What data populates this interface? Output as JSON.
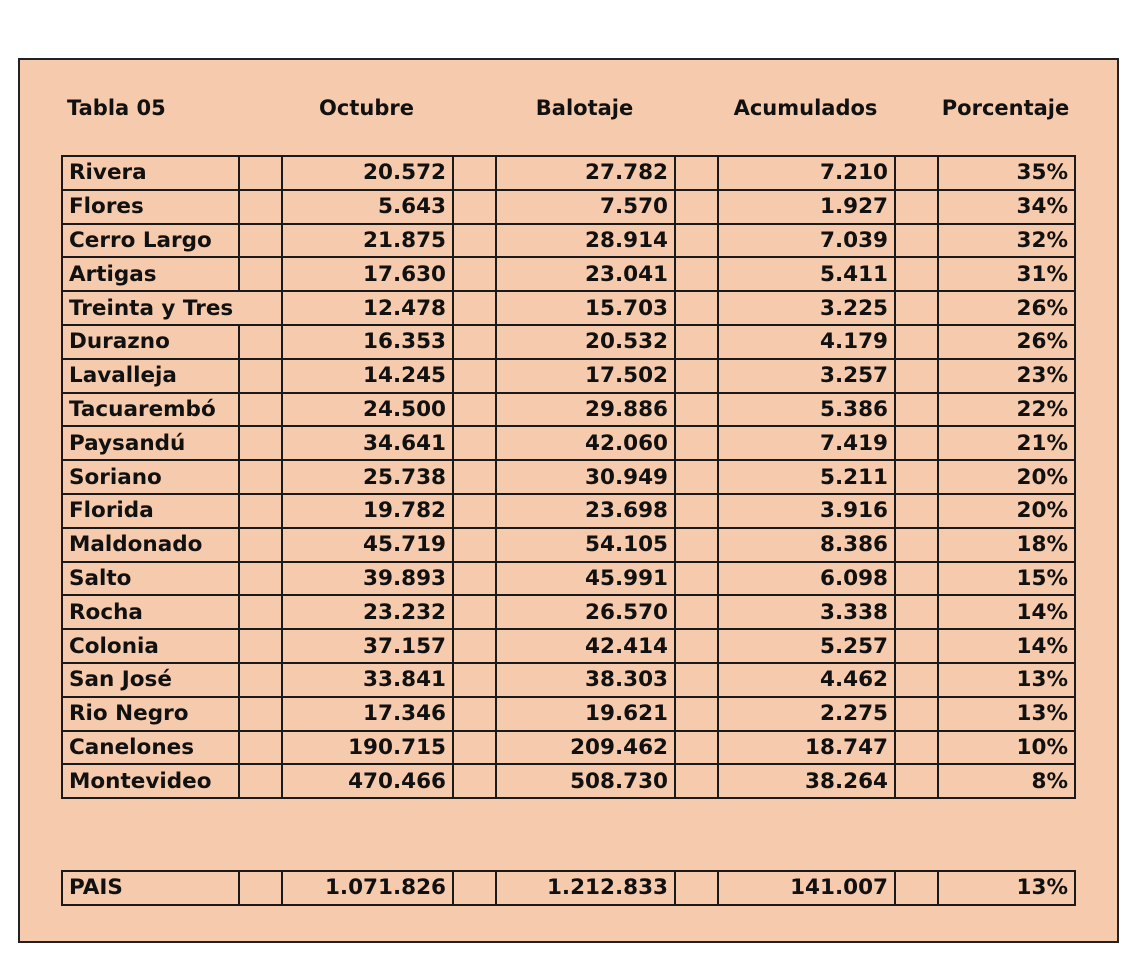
{
  "header": {
    "title": "Tabla 05",
    "columns": [
      "Octubre",
      "Balotaje",
      "Acumulados",
      "Porcentaje"
    ]
  },
  "rows": [
    {
      "name": "Rivera",
      "octubre": "20.572",
      "balotaje": "27.782",
      "acumulados": "7.210",
      "porcentaje": "35%"
    },
    {
      "name": "Flores",
      "octubre": "5.643",
      "balotaje": "7.570",
      "acumulados": "1.927",
      "porcentaje": "34%"
    },
    {
      "name": "Cerro Largo",
      "octubre": "21.875",
      "balotaje": "28.914",
      "acumulados": "7.039",
      "porcentaje": "32%"
    },
    {
      "name": "Artigas",
      "octubre": "17.630",
      "balotaje": "23.041",
      "acumulados": "5.411",
      "porcentaje": "31%"
    },
    {
      "name": "Treinta y Tres",
      "octubre": "12.478",
      "balotaje": "15.703",
      "acumulados": "3.225",
      "porcentaje": "26%",
      "span": true
    },
    {
      "name": "Durazno",
      "octubre": "16.353",
      "balotaje": "20.532",
      "acumulados": "4.179",
      "porcentaje": "26%"
    },
    {
      "name": "Lavalleja",
      "octubre": "14.245",
      "balotaje": "17.502",
      "acumulados": "3.257",
      "porcentaje": "23%"
    },
    {
      "name": "Tacuarembó",
      "octubre": "24.500",
      "balotaje": "29.886",
      "acumulados": "5.386",
      "porcentaje": "22%"
    },
    {
      "name": "Paysandú",
      "octubre": "34.641",
      "balotaje": "42.060",
      "acumulados": "7.419",
      "porcentaje": "21%"
    },
    {
      "name": "Soriano",
      "octubre": "25.738",
      "balotaje": "30.949",
      "acumulados": "5.211",
      "porcentaje": "20%"
    },
    {
      "name": "Florida",
      "octubre": "19.782",
      "balotaje": "23.698",
      "acumulados": "3.916",
      "porcentaje": "20%"
    },
    {
      "name": "Maldonado",
      "octubre": "45.719",
      "balotaje": "54.105",
      "acumulados": "8.386",
      "porcentaje": "18%"
    },
    {
      "name": "Salto",
      "octubre": "39.893",
      "balotaje": "45.991",
      "acumulados": "6.098",
      "porcentaje": "15%"
    },
    {
      "name": "Rocha",
      "octubre": "23.232",
      "balotaje": "26.570",
      "acumulados": "3.338",
      "porcentaje": "14%"
    },
    {
      "name": "Colonia",
      "octubre": "37.157",
      "balotaje": "42.414",
      "acumulados": "5.257",
      "porcentaje": "14%"
    },
    {
      "name": "San José",
      "octubre": "33.841",
      "balotaje": "38.303",
      "acumulados": "4.462",
      "porcentaje": "13%"
    },
    {
      "name": "Rio Negro",
      "octubre": "17.346",
      "balotaje": "19.621",
      "acumulados": "2.275",
      "porcentaje": "13%"
    },
    {
      "name": "Canelones",
      "octubre": "190.715",
      "balotaje": "209.462",
      "acumulados": "18.747",
      "porcentaje": "10%"
    },
    {
      "name": "Montevideo",
      "octubre": "470.466",
      "balotaje": "508.730",
      "acumulados": "38.264",
      "porcentaje": "8%"
    }
  ],
  "total": {
    "name": "PAIS",
    "octubre": "1.071.826",
    "balotaje": "1.212.833",
    "acumulados": "141.007",
    "porcentaje": "13%"
  }
}
